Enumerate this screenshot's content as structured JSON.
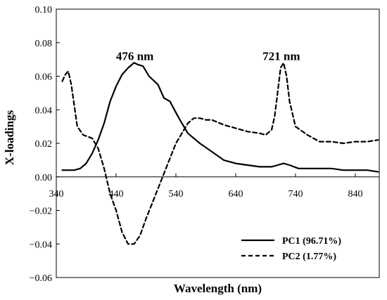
{
  "chart_data": {
    "type": "line",
    "xlabel": "Wavelength (nm)",
    "ylabel": "X-loadings",
    "xlim": [
      340,
      880
    ],
    "ylim": [
      -0.06,
      0.1
    ],
    "x_ticks": [
      340,
      440,
      540,
      640,
      740,
      840
    ],
    "y_ticks": [
      -0.06,
      -0.04,
      -0.02,
      0.0,
      0.02,
      0.04,
      0.06,
      0.08,
      0.1
    ],
    "x_tick_labels": [
      "340",
      "440",
      "540",
      "640",
      "740",
      "840"
    ],
    "y_tick_labels": [
      "−0.06",
      "−0.04",
      "−0.02",
      "0.00",
      "0.02",
      "0.04",
      "0.06",
      "0.08",
      "0.10"
    ],
    "grid": false,
    "legend_position": "bottom-right",
    "annotations": [
      {
        "text": "476 nm",
        "x": 476,
        "y": 0.07
      },
      {
        "text": "721 nm",
        "x": 721,
        "y": 0.07
      }
    ],
    "series": [
      {
        "name": "PC1 (96.71%)",
        "style": "solid",
        "color": "#000000",
        "x": [
          350,
          370,
          380,
          390,
          400,
          410,
          420,
          430,
          440,
          450,
          460,
          470,
          476,
          485,
          495,
          510,
          520,
          530,
          545,
          560,
          580,
          600,
          620,
          640,
          660,
          680,
          700,
          710,
          720,
          730,
          745,
          760,
          780,
          800,
          820,
          840,
          860,
          878
        ],
        "values": [
          0.004,
          0.004,
          0.005,
          0.008,
          0.014,
          0.022,
          0.032,
          0.045,
          0.054,
          0.061,
          0.065,
          0.068,
          0.067,
          0.066,
          0.06,
          0.055,
          0.047,
          0.045,
          0.035,
          0.026,
          0.02,
          0.015,
          0.01,
          0.008,
          0.007,
          0.006,
          0.006,
          0.007,
          0.008,
          0.007,
          0.005,
          0.005,
          0.005,
          0.005,
          0.004,
          0.004,
          0.004,
          0.003
        ]
      },
      {
        "name": "PC2 (1.77%)",
        "style": "dashed",
        "color": "#000000",
        "x": [
          350,
          355,
          360,
          365,
          375,
          385,
          400,
          410,
          420,
          430,
          440,
          450,
          460,
          470,
          480,
          490,
          500,
          510,
          520,
          530,
          540,
          550,
          560,
          570,
          580,
          590,
          600,
          620,
          640,
          660,
          680,
          690,
          700,
          705,
          710,
          715,
          720,
          725,
          730,
          740,
          760,
          780,
          800,
          820,
          840,
          860,
          878
        ],
        "values": [
          0.057,
          0.061,
          0.063,
          0.055,
          0.03,
          0.025,
          0.023,
          0.017,
          0.005,
          -0.01,
          -0.02,
          -0.033,
          -0.04,
          -0.04,
          -0.035,
          -0.025,
          -0.016,
          -0.007,
          0.002,
          0.011,
          0.02,
          0.026,
          0.032,
          0.035,
          0.035,
          0.034,
          0.034,
          0.031,
          0.029,
          0.027,
          0.026,
          0.025,
          0.028,
          0.036,
          0.05,
          0.065,
          0.068,
          0.06,
          0.045,
          0.03,
          0.025,
          0.021,
          0.021,
          0.02,
          0.021,
          0.021,
          0.022
        ]
      }
    ]
  }
}
